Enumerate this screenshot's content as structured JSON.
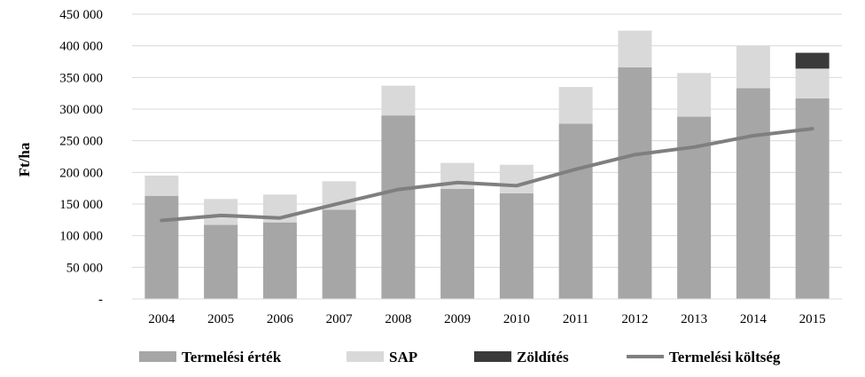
{
  "chart_data": {
    "type": "bar",
    "stacked": true,
    "categories": [
      "2004",
      "2005",
      "2006",
      "2007",
      "2008",
      "2009",
      "2010",
      "2011",
      "2012",
      "2013",
      "2014",
      "2015"
    ],
    "series": [
      {
        "name": "Termelési érték",
        "type": "bar",
        "color": "#a6a6a6",
        "values": [
          163000,
          117000,
          121000,
          141000,
          290000,
          174000,
          167000,
          277000,
          366000,
          288000,
          333000,
          317000
        ]
      },
      {
        "name": "SAP",
        "type": "bar",
        "color": "#d9d9d9",
        "values": [
          32000,
          41000,
          44000,
          45000,
          47000,
          41000,
          45000,
          58000,
          58000,
          69000,
          67000,
          47000
        ]
      },
      {
        "name": "Zöldítés",
        "type": "bar",
        "color": "#3a3a3a",
        "values": [
          0,
          0,
          0,
          0,
          0,
          0,
          0,
          0,
          0,
          0,
          0,
          25000
        ]
      },
      {
        "name": "Termelési költség",
        "type": "line",
        "color": "#7f7f7f",
        "values": [
          124000,
          132000,
          128000,
          151000,
          173000,
          184000,
          179000,
          205000,
          228000,
          240000,
          258000,
          269000
        ]
      }
    ],
    "ylabel": "Ft/ha",
    "xlabel": "",
    "ylim": [
      0,
      450000
    ],
    "yticks": [
      {
        "value": 0,
        "label": "-"
      },
      {
        "value": 50000,
        "label": "50 000"
      },
      {
        "value": 100000,
        "label": "100 000"
      },
      {
        "value": 150000,
        "label": "150 000"
      },
      {
        "value": 200000,
        "label": "200 000"
      },
      {
        "value": 250000,
        "label": "250 000"
      },
      {
        "value": 300000,
        "label": "300 000"
      },
      {
        "value": 350000,
        "label": "350 000"
      },
      {
        "value": 400000,
        "label": "400 000"
      },
      {
        "value": 450000,
        "label": "450 000"
      }
    ],
    "grid": true,
    "legend_position": "bottom"
  }
}
